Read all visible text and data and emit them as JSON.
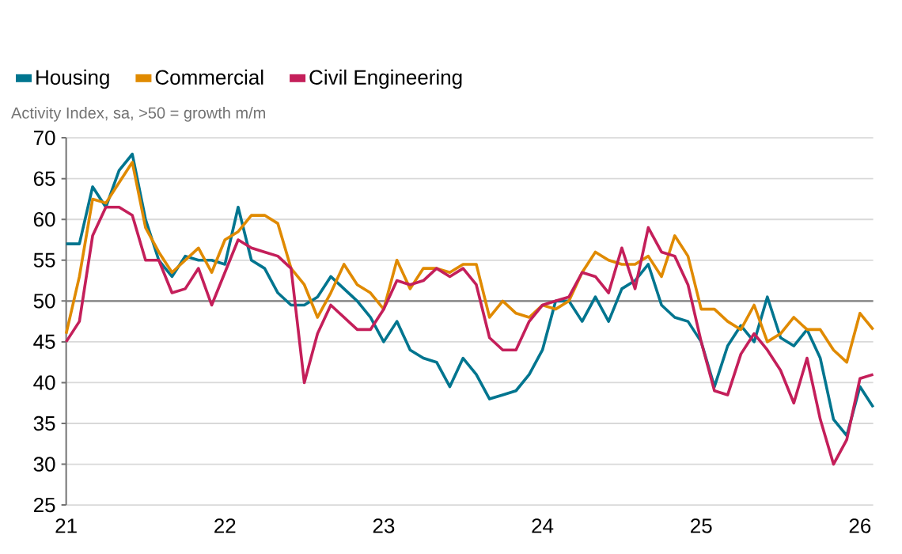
{
  "chart_data": {
    "type": "line",
    "subtitle": "Activity Index, sa, >50 = growth m/m",
    "x": [
      "2021-01",
      "2021-02",
      "2021-03",
      "2021-04",
      "2021-05",
      "2021-06",
      "2021-07",
      "2021-08",
      "2021-09",
      "2021-10",
      "2021-11",
      "2021-12",
      "2022-01",
      "2022-02",
      "2022-03",
      "2022-04",
      "2022-05",
      "2022-06",
      "2022-07",
      "2022-08",
      "2022-09",
      "2022-10",
      "2022-11",
      "2022-12",
      "2023-01",
      "2023-02",
      "2023-03",
      "2023-04",
      "2023-05",
      "2023-06",
      "2023-07",
      "2023-08",
      "2023-09",
      "2023-10",
      "2023-11",
      "2023-12",
      "2024-01",
      "2024-02",
      "2024-03",
      "2024-04",
      "2024-05",
      "2024-06",
      "2024-07",
      "2024-08",
      "2024-09",
      "2024-10",
      "2024-11",
      "2024-12",
      "2025-01",
      "2025-02",
      "2025-03",
      "2025-04",
      "2025-05",
      "2025-06",
      "2025-07",
      "2025-08",
      "2025-09",
      "2025-10",
      "2025-11",
      "2025-12",
      "2026-01",
      "2026-02"
    ],
    "series": [
      {
        "name": "Housing",
        "color": "#00758f",
        "values": [
          57,
          57,
          64,
          61.5,
          66,
          68,
          60,
          55,
          53,
          55.5,
          55,
          55,
          54.5,
          61.5,
          55,
          54,
          51,
          49.5,
          49.5,
          50.5,
          53,
          51.5,
          50,
          48,
          45,
          47.5,
          44,
          43,
          42.5,
          39.5,
          43,
          41,
          38,
          38.5,
          39,
          41,
          44,
          50,
          50,
          47.5,
          50.5,
          47.5,
          51.5,
          52.5,
          54.5,
          49.5,
          48,
          47.5,
          45,
          39.5,
          44.5,
          47,
          45,
          50.5,
          45.5,
          44.5,
          46.5,
          43,
          35.5,
          33.5,
          39.5,
          37
        ]
      },
      {
        "name": "Commercial",
        "color": "#e08a00",
        "values": [
          46,
          53,
          62.5,
          62,
          64.5,
          67,
          59,
          56,
          53.5,
          55,
          56.5,
          53.5,
          57.5,
          58.5,
          60.5,
          60.5,
          59.5,
          54,
          52,
          48,
          51,
          54.5,
          52,
          51,
          49,
          55,
          51.5,
          54,
          54,
          53.5,
          54.5,
          54.5,
          48,
          50,
          48.5,
          48,
          49.5,
          49,
          50,
          53.5,
          56,
          55,
          54.5,
          54.5,
          55.5,
          53,
          58,
          55.5,
          49,
          49,
          47.5,
          46.5,
          49.5,
          45,
          46,
          48,
          46.5,
          46.5,
          44,
          42.5,
          48.5,
          46.5
        ]
      },
      {
        "name": "Civil Engineering",
        "color": "#c41f5a",
        "values": [
          45,
          47.5,
          58,
          61.5,
          61.5,
          60.5,
          55,
          55,
          51,
          51.5,
          54,
          49.5,
          53.5,
          57.5,
          56.5,
          56,
          55.5,
          54,
          40,
          46,
          49.5,
          48,
          46.5,
          46.5,
          49,
          52.5,
          52,
          52.5,
          54,
          53,
          54,
          52,
          45.5,
          44,
          44,
          47.5,
          49.5,
          50,
          50.5,
          53.5,
          53,
          51,
          56.5,
          51.5,
          59,
          56,
          55.5,
          52,
          45,
          39,
          38.5,
          43.5,
          46,
          44,
          41.5,
          37.5,
          43,
          35.5,
          30,
          33,
          40.5,
          41
        ]
      }
    ],
    "xlim": [
      "2021-01",
      "2026-02"
    ],
    "xticks": [
      {
        "value": "2021-01",
        "label": "21"
      },
      {
        "value": "2022-01",
        "label": "22"
      },
      {
        "value": "2023-01",
        "label": "23"
      },
      {
        "value": "2024-01",
        "label": "24"
      },
      {
        "value": "2025-01",
        "label": "25"
      },
      {
        "value": "2026-01",
        "label": "26"
      }
    ],
    "ylim": [
      25,
      70
    ],
    "yticks": [
      25,
      30,
      35,
      40,
      45,
      50,
      55,
      60,
      65,
      70
    ],
    "ref_lines": [
      {
        "axis": "y",
        "value": 50,
        "color": "#7f7f7f"
      }
    ],
    "grid": "y",
    "legend": "top left",
    "marker": "none",
    "line_style": "solid"
  }
}
